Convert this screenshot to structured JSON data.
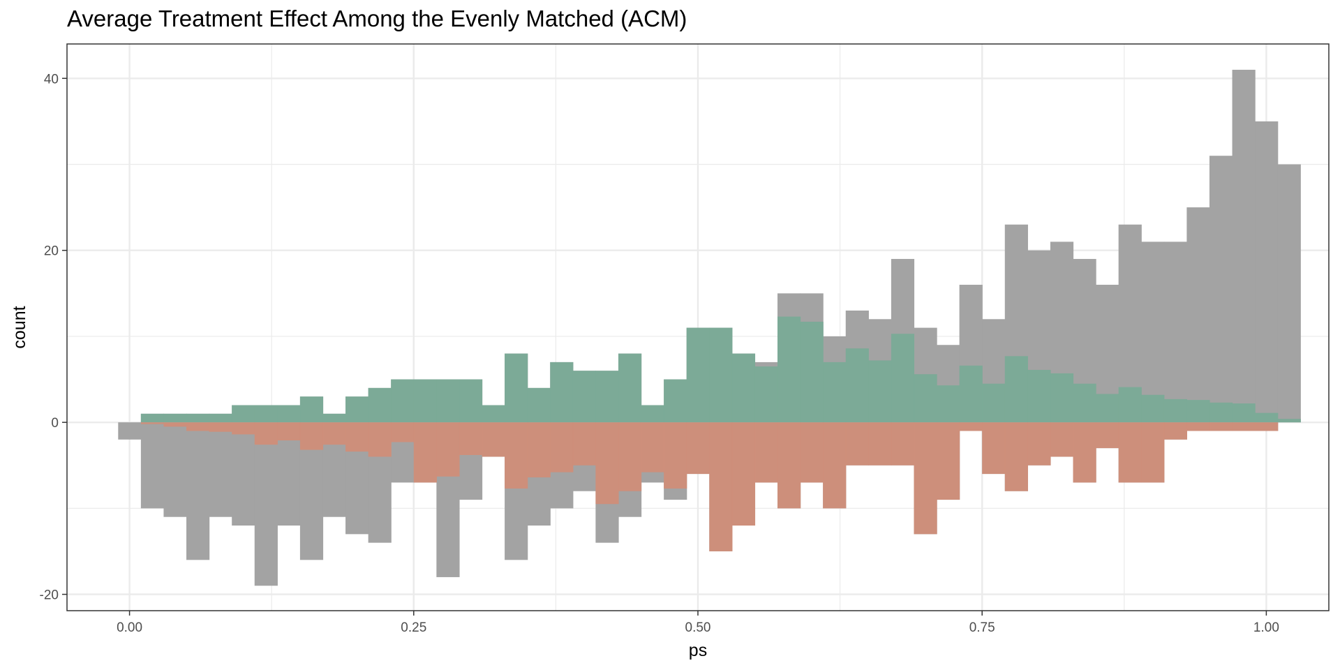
{
  "chart_data": {
    "type": "bar",
    "title": "Average Treatment Effect Among the Evenly Matched (ACM)",
    "xlabel": "ps",
    "ylabel": "count",
    "xlim": [
      -0.055,
      1.055
    ],
    "ylim": [
      -21.9,
      44
    ],
    "x_ticks": [
      0.0,
      0.25,
      0.5,
      0.75,
      1.0
    ],
    "x_tick_labels": [
      "0.00",
      "0.25",
      "0.50",
      "0.75",
      "1.00"
    ],
    "y_ticks": [
      -20,
      0,
      20,
      40
    ],
    "y_tick_labels": [
      "-20",
      "0",
      "20",
      "40"
    ],
    "grid": true,
    "legend": "none",
    "bin_start": -0.01,
    "bin_width": 0.02,
    "colors": {
      "all": "#a3a3a3",
      "matched_treated": "#7aab97",
      "matched_control": "#d08e79",
      "panel_border": "#333333",
      "grid": "#ebebeb"
    },
    "series": [
      {
        "values": [
          0,
          1,
          1,
          1,
          1,
          2,
          2,
          2,
          3,
          1,
          3,
          4,
          5,
          5,
          5,
          5,
          2,
          8,
          4,
          7,
          6,
          6,
          8,
          2,
          5,
          11,
          11,
          8,
          7,
          15,
          15,
          10,
          13,
          12,
          19,
          11,
          9,
          16,
          12,
          23,
          20,
          21,
          19,
          16,
          23,
          21,
          21,
          25,
          31,
          41,
          35,
          30
        ],
        "direction": "up",
        "layer": "all"
      },
      {
        "values": [
          0,
          1,
          1,
          1,
          1,
          2,
          2,
          2,
          3,
          1,
          3,
          4,
          5,
          5,
          5,
          5,
          2,
          8,
          4,
          7,
          6,
          6,
          8,
          2,
          5,
          11,
          11,
          8,
          6.5,
          12.3,
          11.7,
          7,
          8.6,
          7.2,
          10.3,
          5.6,
          4.3,
          6.6,
          4.5,
          7.7,
          6.1,
          5.7,
          4.5,
          3.3,
          4.1,
          3.2,
          2.7,
          2.6,
          2.3,
          2.2,
          1.1,
          0.4
        ],
        "direction": "up",
        "layer": "matched_treated"
      },
      {
        "values": [
          2,
          10,
          11,
          16,
          11,
          12,
          19,
          12,
          16,
          11,
          13,
          14,
          7,
          7,
          18,
          9,
          4,
          16,
          12,
          10,
          8,
          14,
          11,
          7,
          9,
          6,
          15,
          12,
          7,
          10,
          7,
          10,
          5,
          5,
          5,
          13,
          9,
          1,
          6,
          8,
          5,
          4,
          7,
          3,
          7,
          7,
          2,
          1,
          1,
          1,
          1,
          0
        ],
        "direction": "down",
        "layer": "all"
      },
      {
        "values": [
          0,
          0.2,
          0.5,
          1,
          1.1,
          1.4,
          2.6,
          2.1,
          3.2,
          2.6,
          3.4,
          4,
          2.3,
          7,
          6.3,
          3.8,
          4,
          7.7,
          6.4,
          5.8,
          5,
          9.5,
          8,
          5.8,
          7.7,
          6,
          15,
          12,
          7,
          10,
          7,
          10,
          5,
          5,
          5,
          13,
          9,
          1,
          6,
          8,
          5,
          4,
          7,
          3,
          7,
          7,
          2,
          1,
          1,
          1,
          1,
          0
        ],
        "direction": "down",
        "layer": "matched_control"
      }
    ]
  }
}
